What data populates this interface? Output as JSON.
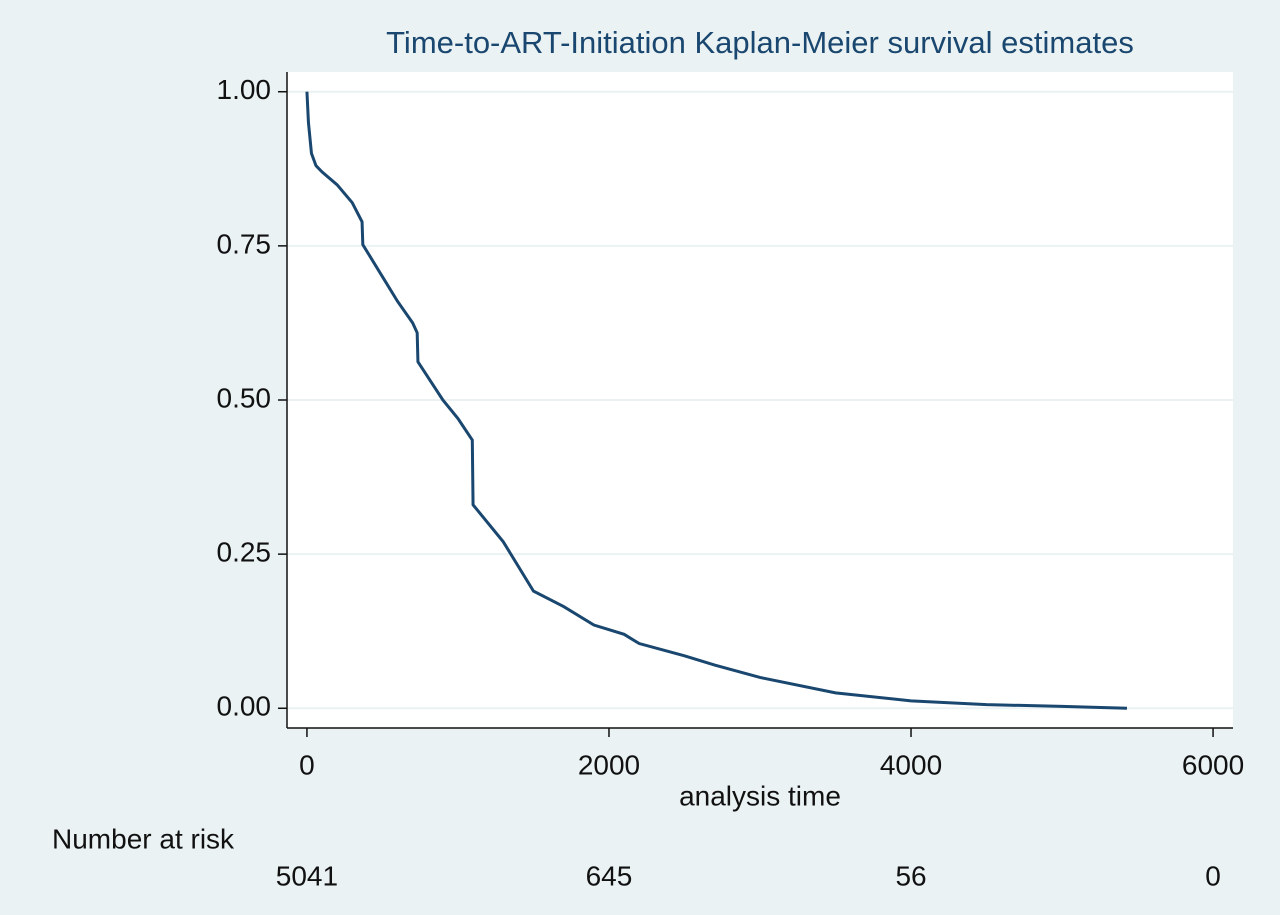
{
  "chart_data": {
    "type": "line",
    "title": "Time-to-ART-Initiation Kaplan-Meier survival estimates",
    "x_label": "analysis time",
    "x": [
      0,
      10,
      30,
      60,
      100,
      200,
      300,
      365,
      370,
      500,
      600,
      700,
      730,
      735,
      900,
      1000,
      1095,
      1100,
      1300,
      1500,
      1700,
      1900,
      2100,
      2200,
      2500,
      2700,
      3000,
      3500,
      4000,
      4500,
      5000,
      5430
    ],
    "series": [
      {
        "name": "survival",
        "color": "#1a476f",
        "values": [
          1.0,
          0.95,
          0.9,
          0.88,
          0.87,
          0.849,
          0.82,
          0.789,
          0.752,
          0.7,
          0.66,
          0.625,
          0.609,
          0.562,
          0.5,
          0.47,
          0.435,
          0.33,
          0.27,
          0.19,
          0.165,
          0.135,
          0.12,
          0.105,
          0.085,
          0.07,
          0.05,
          0.025,
          0.012,
          0.006,
          0.003,
          0.0
        ]
      }
    ],
    "xlim": [
      -132,
      6132
    ],
    "xticks": [
      0,
      2000,
      4000,
      6000
    ],
    "ylim": [
      -0.032,
      1.032
    ],
    "yticks": [
      {
        "value": 0,
        "label": "0.00"
      },
      {
        "value": 0.25,
        "label": "0.25"
      },
      {
        "value": 0.5,
        "label": "0.50"
      },
      {
        "value": 0.75,
        "label": "0.75"
      },
      {
        "value": 1,
        "label": "1.00"
      }
    ],
    "grid": true,
    "risk_table": {
      "title": "Number at risk",
      "values": [
        5041,
        645,
        56,
        0
      ]
    }
  }
}
